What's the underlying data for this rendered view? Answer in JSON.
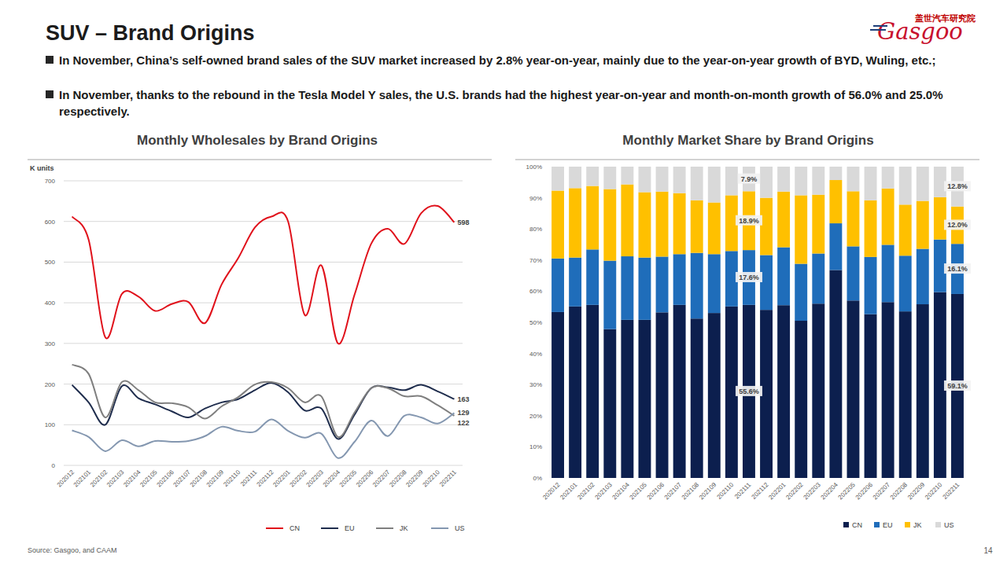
{
  "page": {
    "title": "SUV – Brand Origins",
    "logo_cn": "盖世汽车研究院",
    "logo_en": "Gasgoo",
    "bullets": [
      "In November, China’s self-owned brand sales of the SUV market increased by 2.8% year-on-year, mainly due to the year-on-year growth of BYD, Wuling, etc.;",
      "In November, thanks to the rebound in the Tesla Model Y sales, the U.S. brands had the highest year-on-year and month-on-month growth of 56.0% and 25.0% respectively."
    ],
    "source": "Source: Gasgoo, and CAAM",
    "page_number": 14
  },
  "chart_data": [
    {
      "type": "line",
      "title": "Monthly Wholesales by Brand Origins",
      "y_label": "K units",
      "categories": [
        "202012",
        "202101",
        "202102",
        "202103",
        "202104",
        "202105",
        "202106",
        "202107",
        "202108",
        "202109",
        "202110",
        "202111",
        "202112",
        "202201",
        "202202",
        "202203",
        "202204",
        "202205",
        "202206",
        "202207",
        "202208",
        "202209",
        "202210",
        "202211"
      ],
      "series": [
        {
          "name": "CN",
          "color": "#e0111b",
          "values": [
            612,
            555,
            315,
            422,
            415,
            380,
            397,
            402,
            350,
            445,
            510,
            585,
            612,
            600,
            370,
            492,
            300,
            420,
            545,
            582,
            545,
            620,
            638,
            598
          ],
          "value_labels": [
            null,
            null,
            null,
            null,
            null,
            null,
            null,
            null,
            null,
            null,
            null,
            null,
            null,
            null,
            null,
            null,
            null,
            null,
            null,
            null,
            null,
            null,
            null,
            "598"
          ]
        },
        {
          "name": "EU",
          "color": "#1f2d4d",
          "values": [
            198,
            155,
            100,
            195,
            165,
            150,
            133,
            118,
            140,
            155,
            163,
            185,
            203,
            180,
            135,
            140,
            65,
            125,
            190,
            192,
            185,
            198,
            182,
            163
          ],
          "value_labels": [
            null,
            null,
            null,
            null,
            null,
            null,
            null,
            null,
            null,
            null,
            null,
            null,
            null,
            null,
            null,
            null,
            null,
            null,
            null,
            null,
            null,
            null,
            null,
            "163"
          ]
        },
        {
          "name": "JK",
          "color": "#7f7f7f",
          "values": [
            248,
            225,
            118,
            205,
            185,
            155,
            153,
            143,
            115,
            145,
            168,
            199,
            205,
            190,
            155,
            170,
            70,
            130,
            190,
            190,
            170,
            170,
            148,
            122
          ],
          "value_labels": [
            null,
            null,
            null,
            null,
            null,
            null,
            null,
            null,
            null,
            null,
            null,
            null,
            null,
            null,
            null,
            null,
            null,
            null,
            null,
            null,
            null,
            null,
            null,
            "122"
          ]
        },
        {
          "name": "US",
          "color": "#8497b0",
          "values": [
            86,
            70,
            35,
            62,
            47,
            60,
            58,
            60,
            72,
            95,
            85,
            83,
            113,
            85,
            68,
            78,
            18,
            58,
            110,
            72,
            122,
            118,
            103,
            129
          ],
          "value_labels": [
            null,
            null,
            null,
            null,
            null,
            null,
            null,
            null,
            null,
            null,
            null,
            null,
            null,
            null,
            null,
            null,
            null,
            null,
            null,
            null,
            null,
            null,
            null,
            "129"
          ]
        }
      ],
      "ylim": [
        0,
        700
      ],
      "yticks": [
        0,
        100,
        200,
        300,
        400,
        500,
        600,
        700
      ],
      "grid": true,
      "legend": "bottom",
      "data_labels": true
    },
    {
      "type": "bar",
      "stacked": true,
      "title": "Monthly Market Share by Brand Origins",
      "categories": [
        "202012",
        "202101",
        "202102",
        "202103",
        "202104",
        "202105",
        "202106",
        "202107",
        "202108",
        "202109",
        "202110",
        "202111",
        "202112",
        "202201",
        "202202",
        "202203",
        "202204",
        "202205",
        "202206",
        "202207",
        "202208",
        "202209",
        "202210",
        "202211"
      ],
      "series": [
        {
          "name": "CN",
          "color": "#0c1f4e",
          "values": [
            53.3,
            55.1,
            55.6,
            47.8,
            50.8,
            50.8,
            53.2,
            55.6,
            51.2,
            53.0,
            55.1,
            55.6,
            54.0,
            55.5,
            50.5,
            56.0,
            66.8,
            57.0,
            52.6,
            56.5,
            53.5,
            55.8,
            59.7,
            59.1
          ],
          "value_labels": [
            null,
            null,
            null,
            null,
            null,
            null,
            null,
            null,
            null,
            null,
            null,
            "55.6%",
            null,
            null,
            null,
            null,
            null,
            null,
            null,
            null,
            null,
            null,
            null,
            "59.1%"
          ]
        },
        {
          "name": "EU",
          "color": "#1f6dba",
          "values": [
            17.2,
            15.7,
            17.8,
            22.0,
            20.4,
            20.0,
            17.9,
            16.3,
            21.1,
            18.9,
            17.8,
            17.6,
            17.6,
            18.6,
            18.3,
            16.1,
            15.0,
            17.4,
            18.4,
            18.4,
            17.9,
            17.8,
            16.9,
            16.1
          ],
          "value_labels": [
            null,
            null,
            null,
            null,
            null,
            null,
            null,
            null,
            null,
            null,
            null,
            "17.6%",
            null,
            null,
            null,
            null,
            null,
            null,
            null,
            null,
            null,
            null,
            null,
            "16.1%"
          ]
        },
        {
          "name": "JK",
          "color": "#ffc000",
          "values": [
            21.8,
            22.3,
            20.4,
            23.0,
            23.1,
            21.0,
            20.9,
            19.6,
            16.9,
            16.6,
            17.9,
            18.9,
            18.4,
            17.9,
            22.0,
            18.9,
            13.9,
            17.7,
            18.2,
            18.1,
            16.4,
            15.4,
            13.6,
            12.0
          ],
          "value_labels": [
            null,
            null,
            null,
            null,
            null,
            null,
            null,
            null,
            null,
            null,
            null,
            "18.9%",
            null,
            null,
            null,
            null,
            null,
            null,
            null,
            null,
            null,
            null,
            null,
            "12.0%"
          ]
        },
        {
          "name": "US",
          "color": "#d9d9d9",
          "values": [
            7.7,
            6.9,
            6.2,
            7.2,
            5.7,
            8.2,
            8.0,
            8.5,
            10.8,
            11.5,
            9.2,
            7.9,
            10.0,
            8.0,
            9.2,
            9.0,
            4.3,
            7.9,
            10.8,
            7.0,
            12.2,
            11.0,
            9.8,
            12.8
          ],
          "value_labels": [
            null,
            null,
            null,
            null,
            null,
            null,
            null,
            null,
            null,
            null,
            null,
            "7.9%",
            null,
            null,
            null,
            null,
            null,
            null,
            null,
            null,
            null,
            null,
            null,
            "12.8%"
          ]
        }
      ],
      "ylim": [
        0,
        100
      ],
      "yticks": [
        {
          "value": 0,
          "label": "0%"
        },
        {
          "value": 10,
          "label": "10%"
        },
        {
          "value": 20,
          "label": "20%"
        },
        {
          "value": 30,
          "label": "30%"
        },
        {
          "value": 40,
          "label": "40%"
        },
        {
          "value": 50,
          "label": "50%"
        },
        {
          "value": 60,
          "label": "60%"
        },
        {
          "value": 70,
          "label": "70%"
        },
        {
          "value": 80,
          "label": "80%"
        },
        {
          "value": 90,
          "label": "90%"
        },
        {
          "value": 100,
          "label": "100%"
        }
      ],
      "grid": false,
      "legend": "bottom",
      "data_labels": true
    }
  ]
}
